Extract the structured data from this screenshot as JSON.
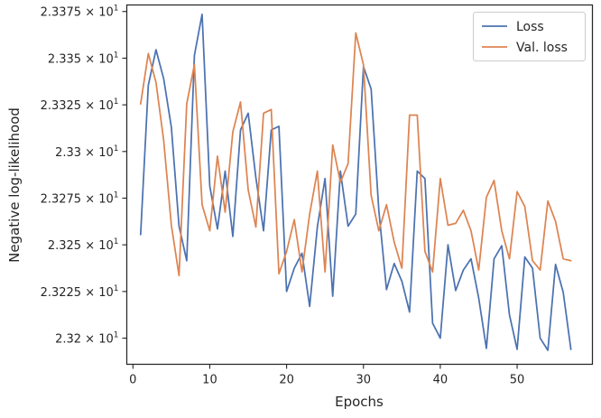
{
  "chart_data": {
    "type": "line",
    "xlabel": "Epochs",
    "ylabel": "Negative log-likelihood",
    "xlim": [
      -0.8,
      59.8
    ],
    "ylim": [
      23.186,
      23.3785
    ],
    "x_ticks": [
      0,
      10,
      20,
      30,
      40,
      50
    ],
    "x_tick_labels": [
      "0",
      "10",
      "20",
      "30",
      "40",
      "50"
    ],
    "y_ticks": [
      23.2,
      23.225,
      23.25,
      23.275,
      23.3,
      23.325,
      23.35,
      23.375
    ],
    "y_tick_mantissas": [
      "2.32",
      "2.3225",
      "2.325",
      "2.3275",
      "2.33",
      "2.3325",
      "2.335",
      "2.3375"
    ],
    "y_tick_multiplier": "× 10",
    "y_tick_exponent": "1",
    "legend_position": "top-right",
    "grid": false,
    "x": [
      1,
      2,
      3,
      4,
      5,
      6,
      7,
      8,
      9,
      10,
      11,
      12,
      13,
      14,
      15,
      16,
      17,
      18,
      19,
      20,
      21,
      22,
      23,
      24,
      25,
      26,
      27,
      28,
      29,
      30,
      31,
      32,
      33,
      34,
      35,
      36,
      37,
      38,
      39,
      40,
      41,
      42,
      43,
      44,
      45,
      46,
      47,
      48,
      49,
      50,
      51,
      52,
      53,
      54,
      55,
      56,
      57
    ],
    "series": [
      {
        "name": "Loss",
        "color": "#4c72b0",
        "values": [
          23.2555,
          23.3355,
          23.3545,
          23.339,
          23.313,
          23.26,
          23.2415,
          23.3515,
          23.3735,
          23.2815,
          23.2585,
          23.2895,
          23.2545,
          23.3115,
          23.3205,
          23.286,
          23.2575,
          23.3115,
          23.3135,
          23.225,
          23.2375,
          23.2455,
          23.217,
          23.2595,
          23.2855,
          23.2225,
          23.2895,
          23.26,
          23.2665,
          23.3455,
          23.3335,
          23.2685,
          23.226,
          23.24,
          23.2305,
          23.214,
          23.2895,
          23.2855,
          23.208,
          23.2,
          23.25,
          23.2255,
          23.2365,
          23.2425,
          23.2215,
          23.1945,
          23.2425,
          23.2495,
          23.2125,
          23.194,
          23.2435,
          23.2375,
          23.2,
          23.1935,
          23.2395,
          23.2245,
          23.194
        ]
      },
      {
        "name": "Val. loss",
        "color": "#dd8452",
        "values": [
          23.3255,
          23.3525,
          23.337,
          23.306,
          23.2605,
          23.2335,
          23.3255,
          23.3465,
          23.2715,
          23.2575,
          23.2975,
          23.2675,
          23.3105,
          23.3265,
          23.2795,
          23.2595,
          23.3205,
          23.3225,
          23.2345,
          23.2465,
          23.2635,
          23.2355,
          23.2665,
          23.2895,
          23.2355,
          23.3035,
          23.2835,
          23.2935,
          23.3635,
          23.3465,
          23.2765,
          23.2575,
          23.2715,
          23.2515,
          23.2375,
          23.3195,
          23.3195,
          23.2465,
          23.2355,
          23.2855,
          23.2605,
          23.2615,
          23.2685,
          23.2575,
          23.2365,
          23.2755,
          23.2845,
          23.2575,
          23.2425,
          23.2785,
          23.2705,
          23.2415,
          23.2365,
          23.2735,
          23.2625,
          23.2425,
          23.2415
        ]
      }
    ]
  }
}
